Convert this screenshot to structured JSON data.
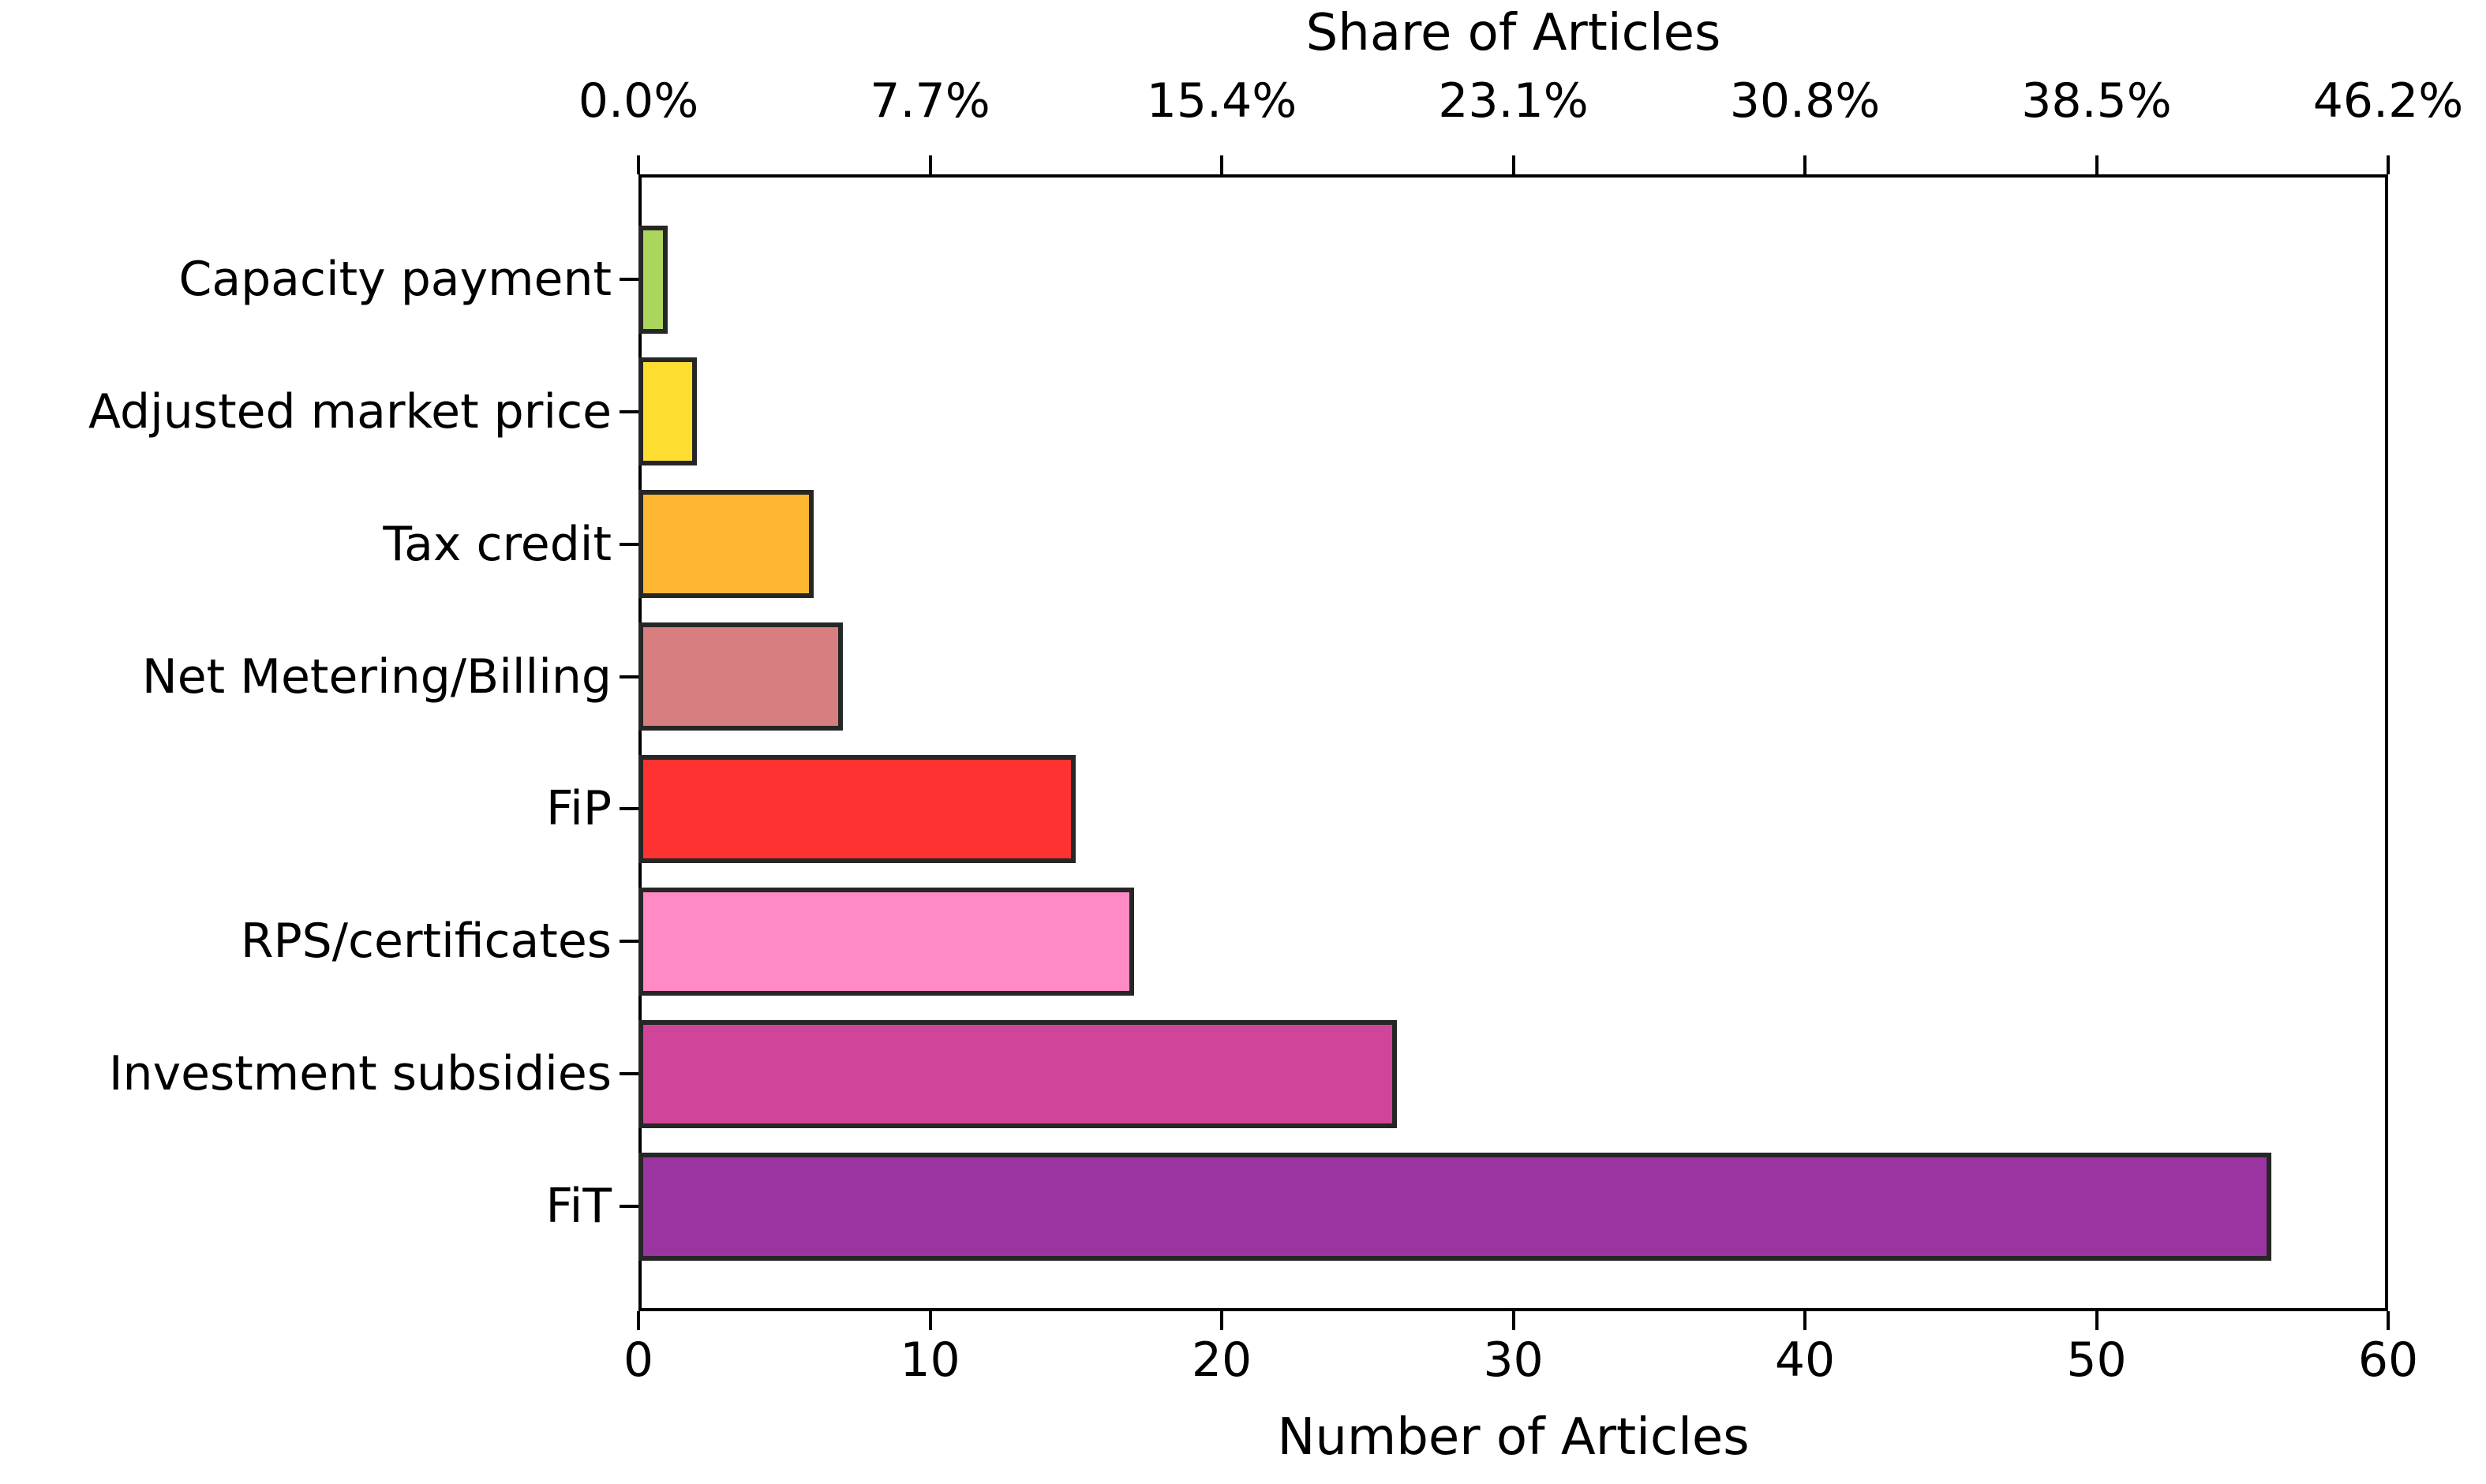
{
  "chart_data": {
    "type": "bar",
    "orientation": "horizontal",
    "top_axis_label": "Share of Articles",
    "xlabel": "Number of Articles",
    "xlim": [
      0,
      60
    ],
    "grid": false,
    "categories": [
      "Capacity payment",
      "Adjusted market price",
      "Tax credit",
      "Net Metering/Billing",
      "FiP",
      "RPS/certificates",
      "Investment subsidies",
      "FiT"
    ],
    "values": [
      1,
      2,
      6,
      7,
      15,
      17,
      26,
      56
    ],
    "bar_colors": [
      "#ABD55C",
      "#FFDE32",
      "#FFB733",
      "#D67E80",
      "#FF3232",
      "#FF8AC4",
      "#D0459A",
      "#9A34A0"
    ],
    "bar_edge_color": "#262626",
    "bottom_ticks": {
      "values": [
        0,
        10,
        20,
        30,
        40,
        50,
        60
      ],
      "labels": [
        "0",
        "10",
        "20",
        "30",
        "40",
        "50",
        "60"
      ]
    },
    "top_ticks": {
      "values": [
        0,
        10,
        20,
        30,
        40,
        50,
        60
      ],
      "labels": [
        "0.0%",
        "7.7%",
        "15.4%",
        "23.1%",
        "30.8%",
        "38.5%",
        "46.2%"
      ]
    }
  }
}
